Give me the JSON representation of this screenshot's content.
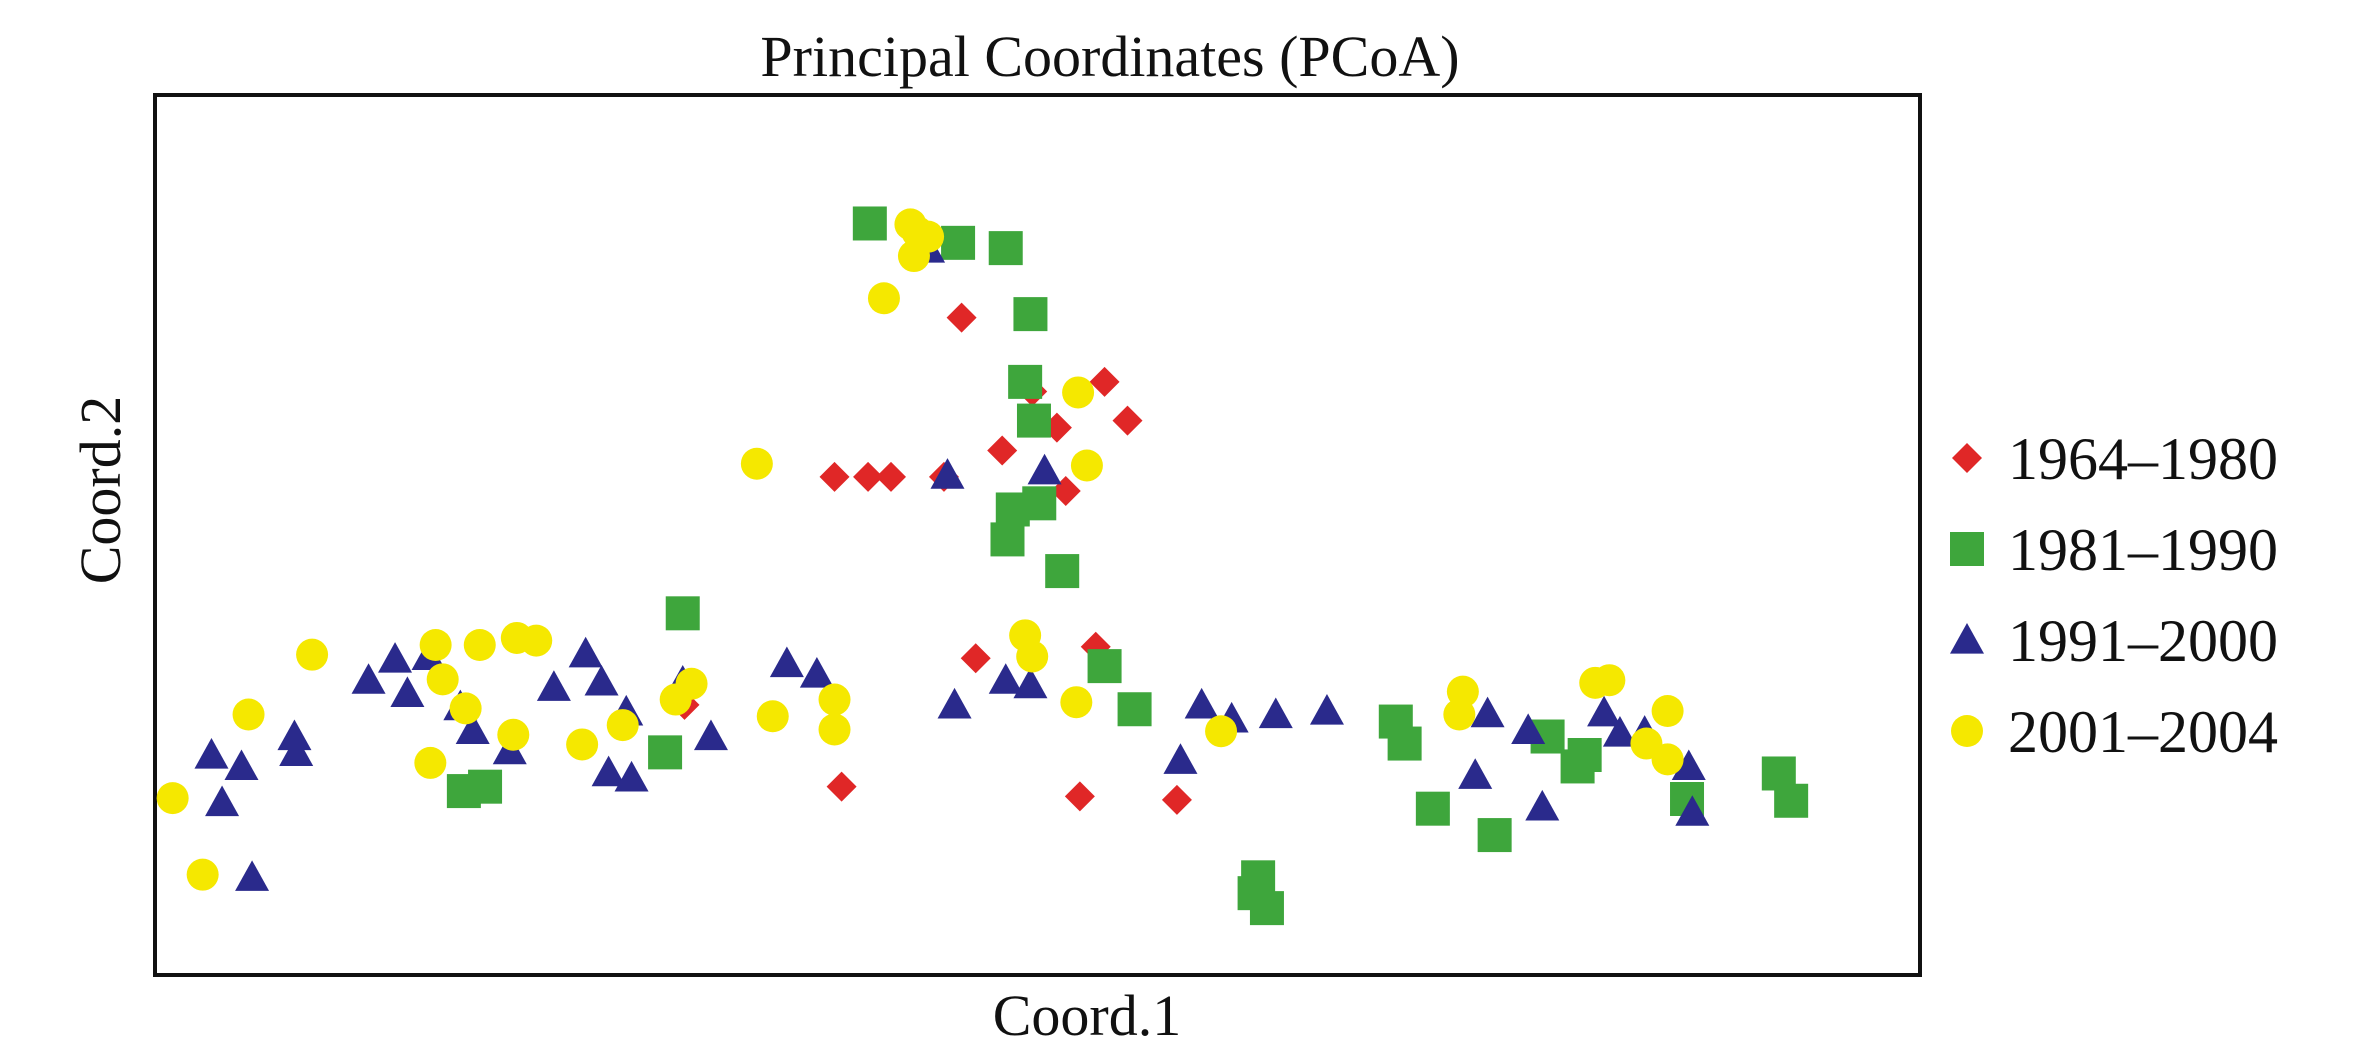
{
  "chart_data": {
    "type": "scatter",
    "title": "Principal Coordinates (PCoA)",
    "xlabel": "Coord.1",
    "ylabel": "Coord.2",
    "xlim": [
      0,
      100
    ],
    "ylim": [
      0,
      100
    ],
    "grid": false,
    "axis_ticks": false,
    "legend_position": "right",
    "series": [
      {
        "name": "1964–1980",
        "marker": "diamond",
        "color": "#e02727",
        "points": [
          [
            45.7,
            74.7
          ],
          [
            51.1,
            62.2
          ],
          [
            53.8,
            67.4
          ],
          [
            55.1,
            63.0
          ],
          [
            51.6,
            55.0
          ],
          [
            44.7,
            56.6
          ],
          [
            40.4,
            56.6
          ],
          [
            41.7,
            56.6
          ],
          [
            38.5,
            56.6
          ],
          [
            48.0,
            59.6
          ],
          [
            49.7,
            66.3
          ],
          [
            53.3,
            37.3
          ],
          [
            57.9,
            19.9
          ],
          [
            52.4,
            20.3
          ],
          [
            38.9,
            21.4
          ],
          [
            46.5,
            36.0
          ],
          [
            30.0,
            30.7
          ]
        ]
      },
      {
        "name": "1981–1990",
        "marker": "square",
        "color": "#3ea63c",
        "points": [
          [
            40.5,
            85.4
          ],
          [
            45.5,
            83.2
          ],
          [
            48.2,
            82.6
          ],
          [
            49.6,
            75.1
          ],
          [
            49.3,
            67.4
          ],
          [
            49.8,
            63.0
          ],
          [
            50.1,
            53.6
          ],
          [
            48.6,
            52.9
          ],
          [
            48.3,
            49.5
          ],
          [
            51.4,
            45.9
          ],
          [
            53.8,
            35.1
          ],
          [
            29.9,
            41.1
          ],
          [
            28.9,
            25.3
          ],
          [
            17.5,
            20.9
          ],
          [
            18.7,
            21.4
          ],
          [
            62.3,
            9.3
          ],
          [
            62.5,
            11.1
          ],
          [
            63.0,
            7.6
          ],
          [
            55.5,
            30.2
          ],
          [
            70.3,
            28.8
          ],
          [
            70.8,
            26.3
          ],
          [
            80.6,
            23.7
          ],
          [
            81.0,
            25.0
          ],
          [
            78.9,
            27.1
          ],
          [
            72.4,
            18.9
          ],
          [
            75.9,
            15.9
          ],
          [
            92.7,
            19.8
          ],
          [
            92.0,
            22.9
          ],
          [
            86.8,
            20.0
          ]
        ]
      },
      {
        "name": "1991–2000",
        "marker": "triangle",
        "color": "#2a2a8c",
        "points": [
          [
            43.8,
            82.5
          ],
          [
            44.9,
            56.8
          ],
          [
            50.4,
            57.3
          ],
          [
            49.6,
            33.0
          ],
          [
            48.2,
            33.5
          ],
          [
            35.8,
            35.4
          ],
          [
            37.5,
            34.2
          ],
          [
            45.3,
            30.7
          ],
          [
            61.0,
            29.1
          ],
          [
            63.5,
            29.6
          ],
          [
            58.1,
            24.4
          ],
          [
            59.3,
            30.7
          ],
          [
            66.4,
            30.0
          ],
          [
            3.8,
            19.6
          ],
          [
            4.9,
            23.7
          ],
          [
            5.5,
            11.1
          ],
          [
            3.2,
            25.0
          ],
          [
            7.9,
            27.1
          ],
          [
            8.0,
            25.3
          ],
          [
            12.1,
            33.5
          ],
          [
            13.6,
            35.9
          ],
          [
            14.3,
            32.0
          ],
          [
            15.5,
            36.2
          ],
          [
            17.3,
            30.5
          ],
          [
            18.0,
            27.8
          ],
          [
            20.1,
            25.5
          ],
          [
            22.6,
            32.7
          ],
          [
            24.4,
            36.5
          ],
          [
            25.3,
            33.3
          ],
          [
            26.7,
            29.9
          ],
          [
            29.9,
            33.3
          ],
          [
            31.5,
            27.1
          ],
          [
            25.7,
            23.0
          ],
          [
            27.0,
            22.4
          ],
          [
            74.8,
            22.7
          ],
          [
            75.5,
            29.7
          ],
          [
            77.8,
            27.8
          ],
          [
            82.1,
            29.8
          ],
          [
            83.0,
            27.5
          ],
          [
            84.4,
            27.6
          ],
          [
            86.9,
            23.7
          ],
          [
            87.1,
            18.5
          ],
          [
            78.6,
            19.1
          ]
        ]
      },
      {
        "name": "2001–2004",
        "marker": "circle",
        "color": "#f5e800",
        "points": [
          [
            42.8,
            85.3
          ],
          [
            43.2,
            84.4
          ],
          [
            43.8,
            83.9
          ],
          [
            43.0,
            81.7
          ],
          [
            41.3,
            76.9
          ],
          [
            34.1,
            58.1
          ],
          [
            52.8,
            57.9
          ],
          [
            52.3,
            66.2
          ],
          [
            49.3,
            38.6
          ],
          [
            49.7,
            36.2
          ],
          [
            52.2,
            31.0
          ],
          [
            29.5,
            31.3
          ],
          [
            35.0,
            29.4
          ],
          [
            38.5,
            27.9
          ],
          [
            38.5,
            31.3
          ],
          [
            5.3,
            29.6
          ],
          [
            8.9,
            36.4
          ],
          [
            15.9,
            37.5
          ],
          [
            18.4,
            37.5
          ],
          [
            20.5,
            38.3
          ],
          [
            21.6,
            38.0
          ],
          [
            16.3,
            33.6
          ],
          [
            17.6,
            30.3
          ],
          [
            20.3,
            27.3
          ],
          [
            24.2,
            26.2
          ],
          [
            26.5,
            28.4
          ],
          [
            30.4,
            33.1
          ],
          [
            15.6,
            24.1
          ],
          [
            1.0,
            20.1
          ],
          [
            2.7,
            11.4
          ],
          [
            73.9,
            29.6
          ],
          [
            74.1,
            32.2
          ],
          [
            81.6,
            33.2
          ],
          [
            82.4,
            33.5
          ],
          [
            85.7,
            30.0
          ],
          [
            60.4,
            27.7
          ],
          [
            85.7,
            24.5
          ],
          [
            84.5,
            26.3
          ]
        ]
      }
    ]
  }
}
